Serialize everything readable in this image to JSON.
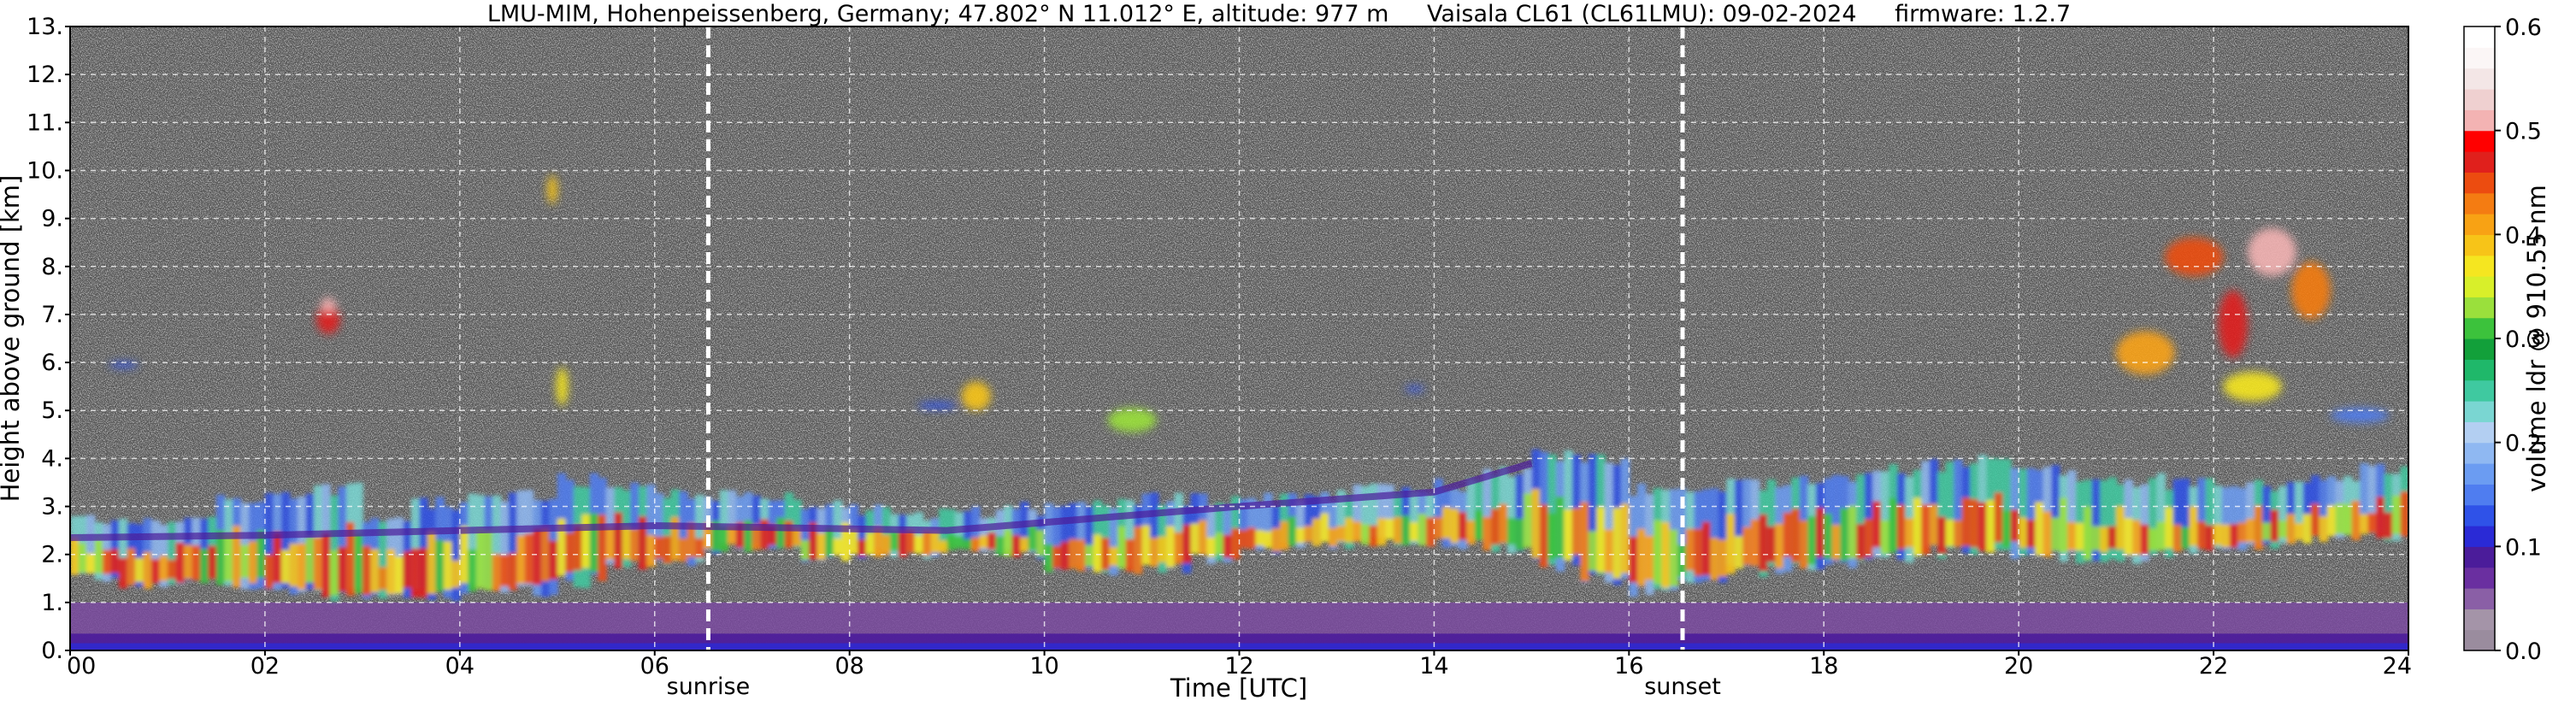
{
  "chart_data": {
    "type": "heatmap",
    "title_left": "LMU-MIM, Hohenpeissenberg, Germany; 47.802° N 11.012° E, altitude: 977 m",
    "title_center": "Vaisala CL61 (CL61LMU): 09-02-2024",
    "title_right": "firmware: 1.2.7",
    "xlabel": "Time [UTC]",
    "ylabel": "Height above ground [km]",
    "colorbar_label": "volume ldr @ 910.55 nm",
    "xlim": [
      0,
      24
    ],
    "ylim": [
      0,
      13
    ],
    "clim": [
      0.0,
      0.6
    ],
    "x_ticks": [
      0,
      2,
      4,
      6,
      8,
      10,
      12,
      14,
      16,
      18,
      20,
      22,
      24
    ],
    "x_tick_labels": [
      "00",
      "02",
      "04",
      "06",
      "08",
      "10",
      "12",
      "14",
      "16",
      "18",
      "20",
      "22",
      "24"
    ],
    "y_ticks": [
      0,
      1,
      2,
      3,
      4,
      5,
      6,
      7,
      8,
      9,
      10,
      11,
      12,
      13
    ],
    "y_tick_labels": [
      "0.",
      "1.",
      "2.",
      "3.",
      "4.",
      "5.",
      "6.",
      "7.",
      "8.",
      "9.",
      "10.",
      "11.",
      "12.",
      "13."
    ],
    "colorbar_ticks": [
      0.0,
      0.1,
      0.2,
      0.3,
      0.4,
      0.5,
      0.6
    ],
    "colorbar_tick_labels": [
      "0.0",
      "0.1",
      "0.2",
      "0.3",
      "0.4",
      "0.5",
      "0.6"
    ],
    "colormap": [
      "#9a8c9e",
      "#a494a8",
      "#8a5fa6",
      "#6a2fa0",
      "#4b1c9a",
      "#2a2ad6",
      "#2f52e8",
      "#4f7df0",
      "#6b9cf2",
      "#8fb8f2",
      "#b3cff2",
      "#7ad6d2",
      "#3fc9a0",
      "#1fb86a",
      "#12a03a",
      "#3cc23c",
      "#9ae03c",
      "#d8ef2a",
      "#f5e620",
      "#f7c418",
      "#f8a214",
      "#f47c12",
      "#ec4c10",
      "#e0201c",
      "#ff0000",
      "#f3b3b3",
      "#efd0d0",
      "#f3e6e6",
      "#fbf6f6",
      "#ffffff"
    ],
    "grid": true,
    "markers": [
      {
        "label": "sunrise",
        "x": 6.55
      },
      {
        "label": "sunset",
        "x": 16.55
      }
    ],
    "background": "#555555"
  }
}
